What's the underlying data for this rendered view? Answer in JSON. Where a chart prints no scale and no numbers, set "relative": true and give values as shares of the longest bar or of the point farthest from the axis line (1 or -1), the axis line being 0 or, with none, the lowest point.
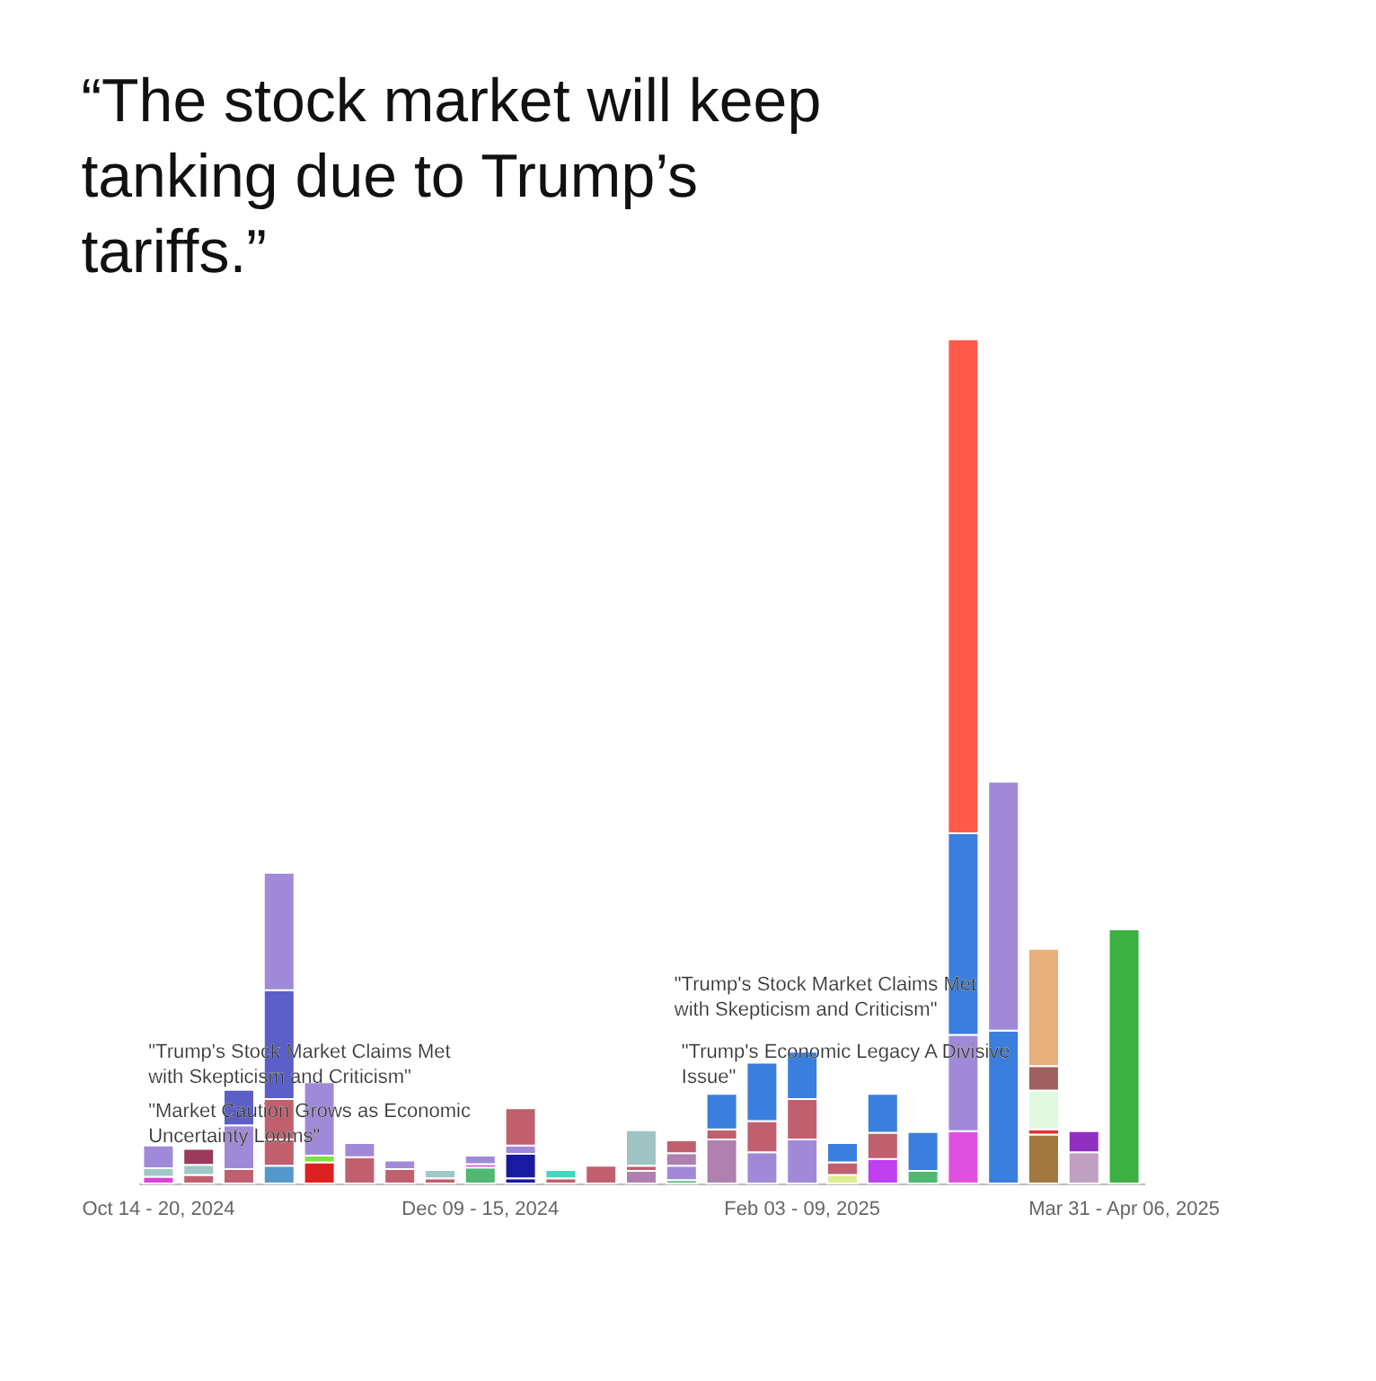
{
  "chart_data": {
    "type": "bar",
    "stacked": true,
    "relative": true,
    "tick_labels": "x",
    "title": "“The stock market will keep tanking due to Trump’s tariffs.”",
    "categories": [
      "Oct 14 - 20, 2024",
      null,
      null,
      null,
      null,
      null,
      null,
      null,
      "Dec 09 - 15, 2024",
      null,
      null,
      null,
      null,
      null,
      null,
      null,
      "Feb 03 - 09, 2025",
      null,
      null,
      null,
      null,
      null,
      null,
      null,
      "Mar 31 - Apr 06, 2025"
    ],
    "series": [
      {
        "values": [
          0.008,
          0.01,
          0.017,
          0.021,
          0.025,
          0.031,
          0.017,
          0.006,
          0.019,
          0.006,
          0.006,
          0.021,
          0.015,
          0.004,
          0.052,
          0.037,
          0.052,
          0.01,
          0.029,
          0.015,
          0.062,
          0.181,
          0.058,
          0.037,
          0.301
        ],
        "colors": [
          "#e040e0",
          "#c0606e",
          "#c0606e",
          "#5599cc",
          "#e02020",
          "#c0606e",
          "#c0606e",
          "#c0606e",
          "#50b870",
          "#1a1aa0",
          "#c0606e",
          "#c0606e",
          "#b080b0",
          "#50b870",
          "#b080b0",
          "#a08ad8",
          "#a08ad8",
          "#e0ec90",
          "#c040f0",
          "#50b870",
          "#e050e0",
          "#3a7fdd",
          "#a07840",
          "#c0a0c0",
          "#3cb043"
        ]
      },
      {
        "values": [
          0.01,
          0.012,
          0.052,
          0.031,
          0.008,
          0.017,
          0.01,
          0.01,
          0.004,
          0.029,
          0.01,
          null,
          0.006,
          0.017,
          0.012,
          0.037,
          0.048,
          0.015,
          0.031,
          0.046,
          0.114,
          0.295,
          0.006,
          0.025,
          null
        ],
        "colors": [
          "#9fc7c7",
          "#9fc7c7",
          "#a08ad8",
          "#c0606e",
          "#80e040",
          "#a08ad8",
          "#a08ad8",
          "#9fc7c7",
          "#e040e0",
          "#1a1aa0",
          "#40d8c0",
          "#c0606e",
          "#c0606e",
          "#a08ad8",
          "#c0606e",
          "#c0606e",
          "#c0606e",
          "#c0606e",
          "#c0606e",
          "#3a7fdd",
          "#a08ad8",
          "#a08ad8",
          "#e83030",
          "#9030c0",
          "#3cb043"
        ]
      },
      {
        "values": [
          0.027,
          0.019,
          0.042,
          0.048,
          0.087,
          null,
          null,
          null,
          0.01,
          0.01,
          null,
          null,
          0.042,
          0.015,
          0.042,
          0.069,
          0.056,
          0.023,
          0.046,
          null,
          0.239,
          null,
          0.046,
          null,
          null
        ],
        "colors": [
          "#a08ad8",
          "#9b3a5a",
          "#5b5fc7",
          "#c0606e",
          "#a08ad8",
          "#a08ad8",
          "#a08ad8",
          "#9fc7c7",
          "#a08ad8",
          "#a08ad8",
          "#40d8c0",
          "#c0606e",
          "#a0c4c4",
          "#b080b0",
          "#3a7fdd",
          "#3a7fdd",
          "#3a7fdd",
          "#3a7fdd",
          "#3a7fdd",
          "#3a7fdd",
          "#3a7fdd",
          "#a08ad8",
          "#e0f8e0",
          "#9030c0",
          "#3cb043"
        ]
      },
      {
        "values": [
          null,
          null,
          null,
          0.129,
          null,
          null,
          null,
          null,
          null,
          0.044,
          null,
          null,
          null,
          0.015,
          null,
          null,
          null,
          null,
          null,
          null,
          0.585,
          null,
          0.029,
          null,
          null
        ],
        "colors": [
          "#a08ad8",
          "#9b3a5a",
          "#5b5fc7",
          "#5b5fc7",
          "#a08ad8",
          "#a08ad8",
          "#a08ad8",
          "#9fc7c7",
          "#a08ad8",
          "#c0606e",
          "#40d8c0",
          "#c0606e",
          "#a0c4c4",
          "#c0606e",
          "#3a7fdd",
          "#3a7fdd",
          "#3a7fdd",
          "#3a7fdd",
          "#3a7fdd",
          "#3a7fdd",
          "#ff5a4a",
          "#a08ad8",
          "#a06060",
          "#9030c0",
          "#3cb043"
        ]
      },
      {
        "values": [
          null,
          null,
          null,
          0.139,
          null,
          null,
          null,
          null,
          null,
          null,
          null,
          null,
          null,
          null,
          null,
          null,
          null,
          null,
          null,
          null,
          null,
          null,
          0.139,
          null,
          null
        ],
        "colors": [
          "#a08ad8",
          "#9b3a5a",
          "#5b5fc7",
          "#a08ad8",
          "#a08ad8",
          "#a08ad8",
          "#a08ad8",
          "#9fc7c7",
          "#a08ad8",
          "#c0606e",
          "#40d8c0",
          "#c0606e",
          "#a0c4c4",
          "#c0606e",
          "#3a7fdd",
          "#3a7fdd",
          "#3a7fdd",
          "#3a7fdd",
          "#3a7fdd",
          "#3a7fdd",
          "#ff5a4a",
          "#a08ad8",
          "#e8b07c",
          "#9030c0",
          "#3cb043"
        ]
      }
    ],
    "annotations": [
      "\"Trump's Stock Market Claims Met with Skepticism and Criticism\"",
      "\"Market Caution Grows as Economic Uncertainty Looms\"",
      "\"Trump's Economic Legacy A Divisive Issue\"",
      "\"Trump's Stock Market Claims Met with Skepticism and Criticism\""
    ]
  }
}
